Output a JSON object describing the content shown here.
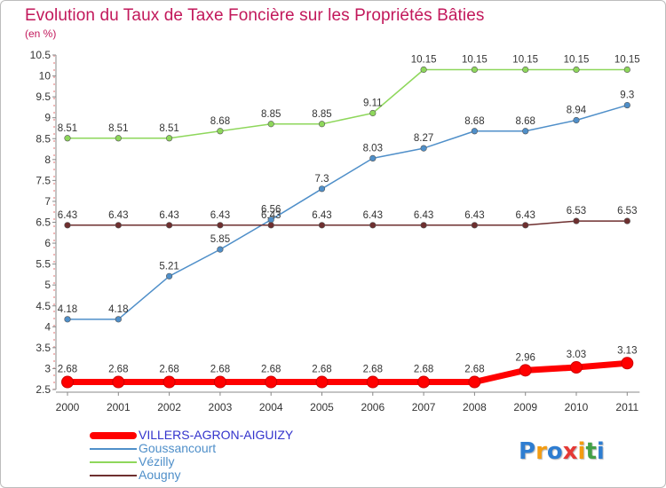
{
  "title": "Evolution du Taux de Taxe Foncière sur les Propriétés Bâties",
  "unit_label": "(en %)",
  "logo": {
    "letters": [
      "P",
      "r",
      "o",
      "x",
      "i",
      "t",
      "i"
    ],
    "colors": [
      "#2e7dd1",
      "#f39c12",
      "#2e7dd1",
      "#e53935",
      "#f39c12",
      "#43a047",
      "#2e7dd1"
    ]
  },
  "chart_data": {
    "type": "line",
    "title": "Evolution du Taux de Taxe Foncière sur les Propriétés Bâties",
    "ylabel": "(en %)",
    "xlabel": "",
    "x": [
      "2000",
      "2001",
      "2002",
      "2003",
      "2004",
      "2005",
      "2006",
      "2007",
      "2008",
      "2009",
      "2010",
      "2011"
    ],
    "ylim": [
      2.5,
      10.5
    ],
    "yticks": [
      "2.5",
      "3",
      "3.5",
      "4",
      "4.5",
      "5",
      "5.5",
      "6",
      "6.5",
      "7",
      "7.5",
      "8",
      "8.5",
      "9",
      "9.5",
      "10",
      "10.5"
    ],
    "grid": false,
    "legend_position": "bottom-left",
    "series": [
      {
        "name": "VILLERS-AGRON-AIGUIZY",
        "color": "#ff0000",
        "highlight": true,
        "values": [
          2.68,
          2.68,
          2.68,
          2.68,
          2.68,
          2.68,
          2.68,
          2.68,
          2.68,
          2.96,
          3.03,
          3.13
        ],
        "labels": [
          "2.68",
          "2.68",
          "2.68",
          "2.68",
          "2.68",
          "2.68",
          "2.68",
          "2.68",
          "2.68",
          "2.96",
          "3.03",
          "3.13"
        ]
      },
      {
        "name": "Goussancourt",
        "color": "#4f8fc9",
        "highlight": false,
        "values": [
          4.18,
          4.18,
          5.21,
          5.85,
          6.56,
          7.3,
          8.03,
          8.27,
          8.68,
          8.68,
          8.94,
          9.3
        ],
        "labels": [
          "4.18",
          "4.18",
          "5.21",
          "5.85",
          "6.56",
          "7.3",
          "8.03",
          "8.27",
          "8.68",
          "8.68",
          "8.94",
          "9.3"
        ]
      },
      {
        "name": "Vézilly",
        "color": "#8ed75b",
        "highlight": false,
        "values": [
          8.51,
          8.51,
          8.51,
          8.68,
          8.85,
          8.85,
          9.11,
          10.15,
          10.15,
          10.15,
          10.15,
          10.15
        ],
        "labels": [
          "8.51",
          "8.51",
          "8.51",
          "8.68",
          "8.85",
          "8.85",
          "9.11",
          "10.15",
          "10.15",
          "10.15",
          "10.15",
          "10.15"
        ]
      },
      {
        "name": "Aougny",
        "color": "#6e2f2f",
        "highlight": false,
        "values": [
          6.43,
          6.43,
          6.43,
          6.43,
          6.43,
          6.43,
          6.43,
          6.43,
          6.43,
          6.43,
          6.53,
          6.53
        ],
        "labels": [
          "6.43",
          "6.43",
          "6.43",
          "6.43",
          "6.43",
          "6.43",
          "6.43",
          "6.43",
          "6.43",
          "6.43",
          "6.53",
          "6.53"
        ]
      }
    ]
  }
}
